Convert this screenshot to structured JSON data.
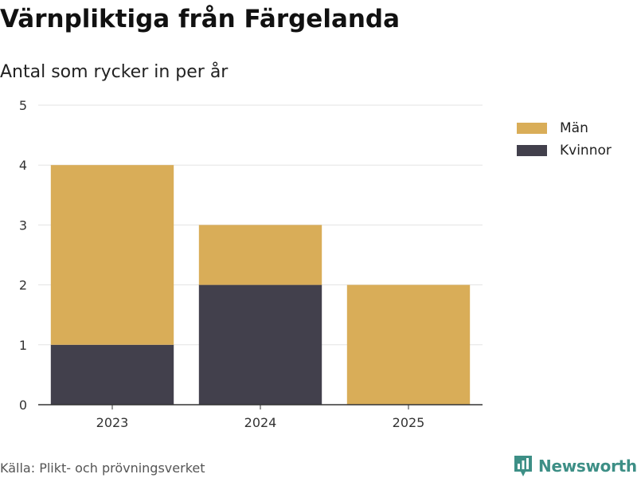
{
  "title": "Värnpliktiga från Färgelanda",
  "subtitle": "Antal som rycker in per år",
  "source": "Källa: Plikt- och prövningsverket",
  "brand": {
    "name": "Newsworthy",
    "icon": "newsworthy-logo-icon",
    "color": "#3d8f86"
  },
  "colors": {
    "Män": "#d9ad58",
    "Kvinnor": "#42404c"
  },
  "chart_data": {
    "type": "bar",
    "stacked": true,
    "categories": [
      "2023",
      "2024",
      "2025"
    ],
    "series": [
      {
        "name": "Kvinnor",
        "values": [
          1,
          2,
          0
        ]
      },
      {
        "name": "Män",
        "values": [
          3,
          1,
          2
        ]
      }
    ],
    "yticks": [
      "0",
      "1",
      "2",
      "3",
      "4",
      "5"
    ],
    "ylim": [
      0,
      5
    ],
    "grid": true,
    "legend": "top-right",
    "legend_entries": [
      "Män",
      "Kvinnor"
    ],
    "xlabel": "",
    "ylabel": ""
  }
}
